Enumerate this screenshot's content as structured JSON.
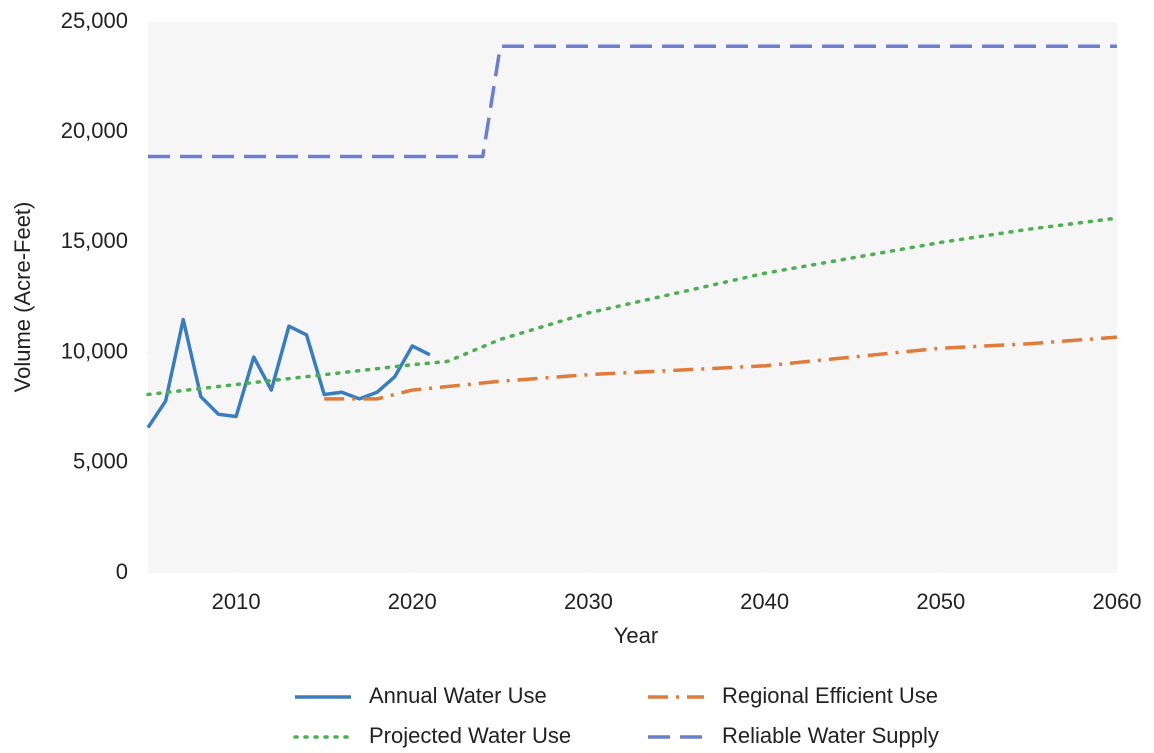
{
  "chart_data": {
    "type": "line",
    "x_label": "Year",
    "y_label": "Volume (Acre-Feet)",
    "xlim": [
      2005,
      2060
    ],
    "ylim": [
      0,
      25000
    ],
    "xticks": [
      2010,
      2020,
      2030,
      2040,
      2050,
      2060
    ],
    "yticks": [
      0,
      {
        "value": 5000,
        "label": "5,000"
      },
      {
        "value": 10000,
        "label": "10,000"
      },
      {
        "value": 15000,
        "label": "15,000"
      },
      {
        "value": 20000,
        "label": "20,000"
      },
      {
        "value": 25000,
        "label": "25,000"
      }
    ],
    "series": [
      {
        "name": "Annual Water Use",
        "color": "#3a7dbf",
        "dash": "solid",
        "x": [
          2005,
          2006,
          2007,
          2008,
          2009,
          2010,
          2011,
          2012,
          2013,
          2014,
          2015,
          2016,
          2017,
          2018,
          2019,
          2020,
          2021
        ],
        "values": [
          6600,
          7800,
          11500,
          8000,
          7200,
          7100,
          9800,
          8300,
          11200,
          10800,
          8100,
          8200,
          7900,
          8200,
          8900,
          10300,
          9900
        ]
      },
      {
        "name": "Projected Water Use",
        "color": "#4caf50",
        "dash": "dotted",
        "x": [
          2005,
          2010,
          2015,
          2020,
          2022,
          2025,
          2030,
          2035,
          2040,
          2045,
          2050,
          2055,
          2060
        ],
        "values": [
          8100,
          8550,
          9000,
          9450,
          9600,
          10600,
          11800,
          12700,
          13600,
          14300,
          15000,
          15600,
          16100
        ]
      },
      {
        "name": "Regional Efficient Use",
        "color": "#e07b39",
        "dash": "dashdot",
        "x": [
          2015,
          2018,
          2020,
          2025,
          2030,
          2035,
          2040,
          2045,
          2050,
          2055,
          2060
        ],
        "values": [
          7900,
          7900,
          8300,
          8700,
          9000,
          9200,
          9400,
          9800,
          10200,
          10400,
          10700
        ]
      },
      {
        "name": "Reliable Water Supply",
        "color": "#6b7fd1",
        "dash": "dashed",
        "x": [
          2005,
          2024,
          2025,
          2060
        ],
        "values": [
          18900,
          18900,
          23900,
          23900
        ]
      }
    ]
  }
}
